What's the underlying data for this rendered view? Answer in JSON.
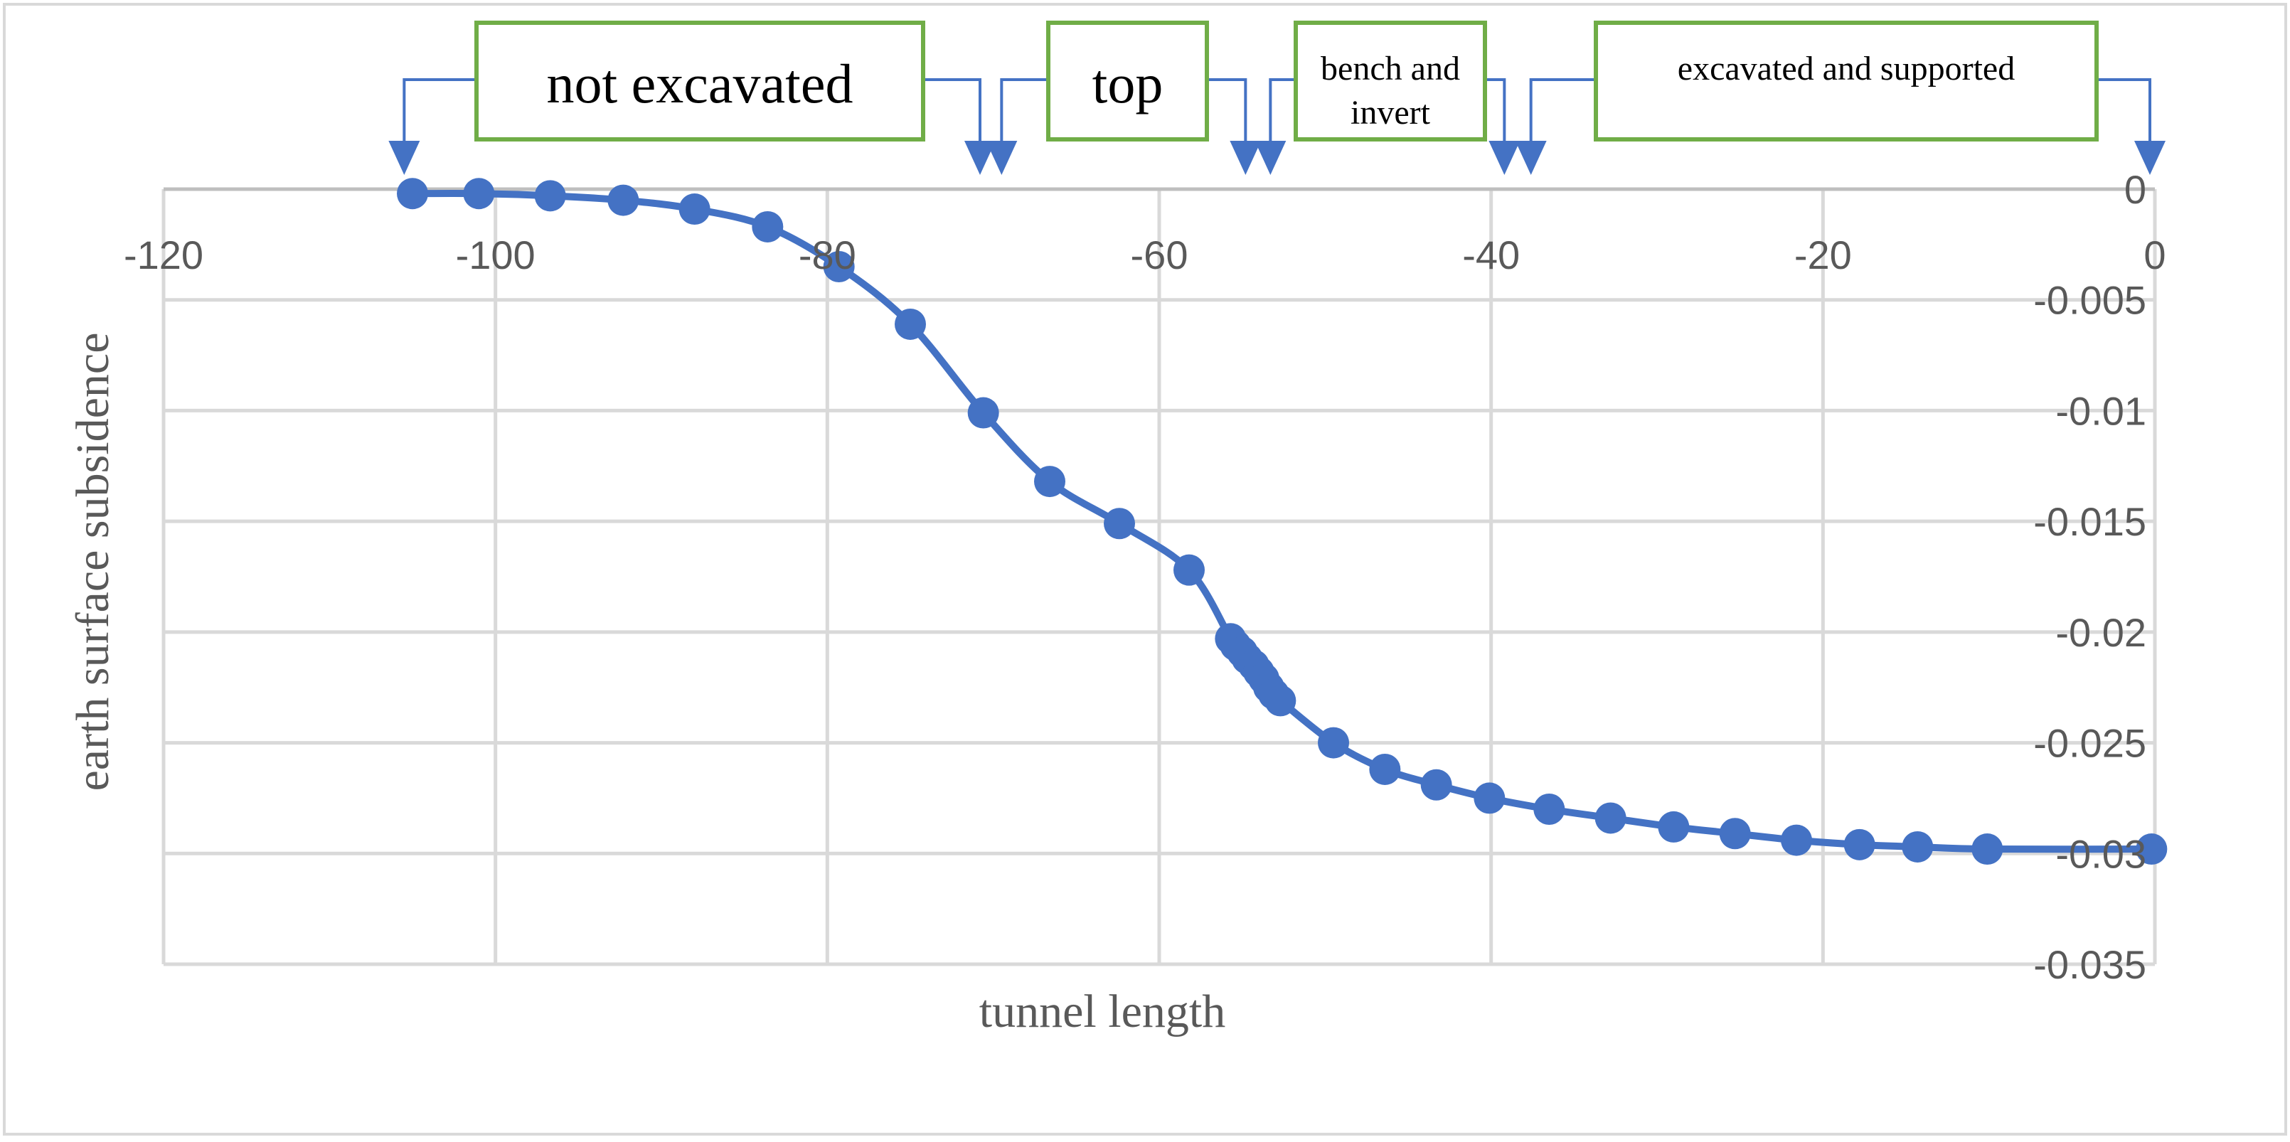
{
  "chart_data": {
    "type": "line",
    "title": "",
    "xlabel": "tunnel length",
    "ylabel": "earth surface subsidence",
    "xlim": [
      -120,
      0
    ],
    "ylim": [
      -0.035,
      0
    ],
    "x_ticks": [
      -120,
      -100,
      -80,
      -60,
      -40,
      -20,
      0
    ],
    "x_tick_labels": [
      "-120",
      "-100",
      "-80",
      "-60",
      "-40",
      "-20",
      "0"
    ],
    "y_ticks": [
      0,
      -0.005,
      -0.01,
      -0.015,
      -0.02,
      -0.025,
      -0.03,
      -0.035
    ],
    "y_tick_labels": [
      "0",
      "-0.005",
      "-0.01",
      "-0.015",
      "-0.02",
      "-0.025",
      "-0.03",
      "-0.035"
    ],
    "grid": true,
    "legend": "none",
    "series": [
      {
        "color": "#4472C4",
        "marker": "circle",
        "smooth": true,
        "x": [
          -105,
          -101,
          -96.7,
          -92.3,
          -88,
          -83.6,
          -79.3,
          -75,
          -70.6,
          -66.6,
          -62.4,
          -58.2,
          -55.7,
          -55.4,
          -55.0,
          -54.7,
          -54.3,
          -54.0,
          -53.7,
          -53.4,
          -53.1,
          -52.7,
          -49.5,
          -46.4,
          -43.3,
          -40.1,
          -36.5,
          -32.8,
          -29,
          -25.3,
          -21.6,
          -17.8,
          -14.3,
          -10.1,
          -0.2
        ],
        "y": [
          -0.0002,
          -0.0002,
          -0.0003,
          -0.0005,
          -0.0009,
          -0.0017,
          -0.0035,
          -0.0061,
          -0.0101,
          -0.0132,
          -0.0151,
          -0.0172,
          -0.0203,
          -0.0206,
          -0.0209,
          -0.0212,
          -0.0215,
          -0.0218,
          -0.0221,
          -0.0225,
          -0.0228,
          -0.0231,
          -0.025,
          -0.0262,
          -0.0269,
          -0.0275,
          -0.028,
          -0.0284,
          -0.0288,
          -0.0291,
          -0.0294,
          -0.0296,
          -0.0297,
          -0.0298,
          -0.0298
        ]
      }
    ],
    "annotations": [
      {
        "label": "not excavated",
        "range": [
          -105.5,
          -70.8
        ]
      },
      {
        "label": "top",
        "range": [
          -69.5,
          -54.8
        ]
      },
      {
        "label": "bench and invert",
        "range": [
          -53.3,
          -39.2
        ]
      },
      {
        "label": "excavated and supported",
        "range": [
          -37.6,
          -0.3
        ]
      }
    ]
  },
  "style": {
    "series_color": "#4472C4",
    "grid_color": "#D9D9D9",
    "axis_color": "#BFBFBF",
    "tick_label_color": "#595959",
    "axis_title_color": "#595959",
    "annotation_border_color": "#70AD47",
    "annotation_text_color": "#000000",
    "frame_color": "#D9D9D9"
  }
}
